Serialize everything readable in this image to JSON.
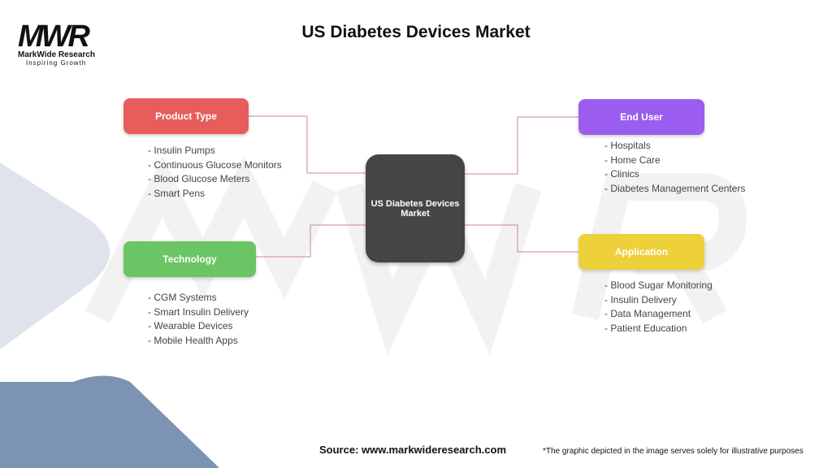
{
  "title": "US Diabetes Devices Market",
  "logo": {
    "mark": "MWR",
    "name": "MarkWide Research",
    "tagline": "Inspiring Growth"
  },
  "center": "US Diabetes Devices Market",
  "categories": [
    {
      "label": "Product Type",
      "color": "#E85C5C",
      "items": [
        "Insulin Pumps",
        "Continuous Glucose Monitors",
        "Blood Glucose Meters",
        "Smart Pens"
      ]
    },
    {
      "label": "Technology",
      "color": "#6CC564",
      "items": [
        "CGM Systems",
        "Smart Insulin Delivery",
        "Wearable Devices",
        "Mobile Health Apps"
      ]
    },
    {
      "label": "End User",
      "color": "#9B5CF0",
      "items": [
        "Hospitals",
        "Home Care",
        "Clinics",
        "Diabetes Management Centers"
      ]
    },
    {
      "label": "Application",
      "color": "#EDD03A",
      "items": [
        "Blood Sugar Monitoring",
        "Insulin Delivery",
        "Data Management",
        "Patient Education"
      ]
    }
  ],
  "connector_color": "#C98A8A",
  "source": "Source: www.markwideresearch.com",
  "note": "*The graphic depicted in the image serves solely for illustrative purposes"
}
